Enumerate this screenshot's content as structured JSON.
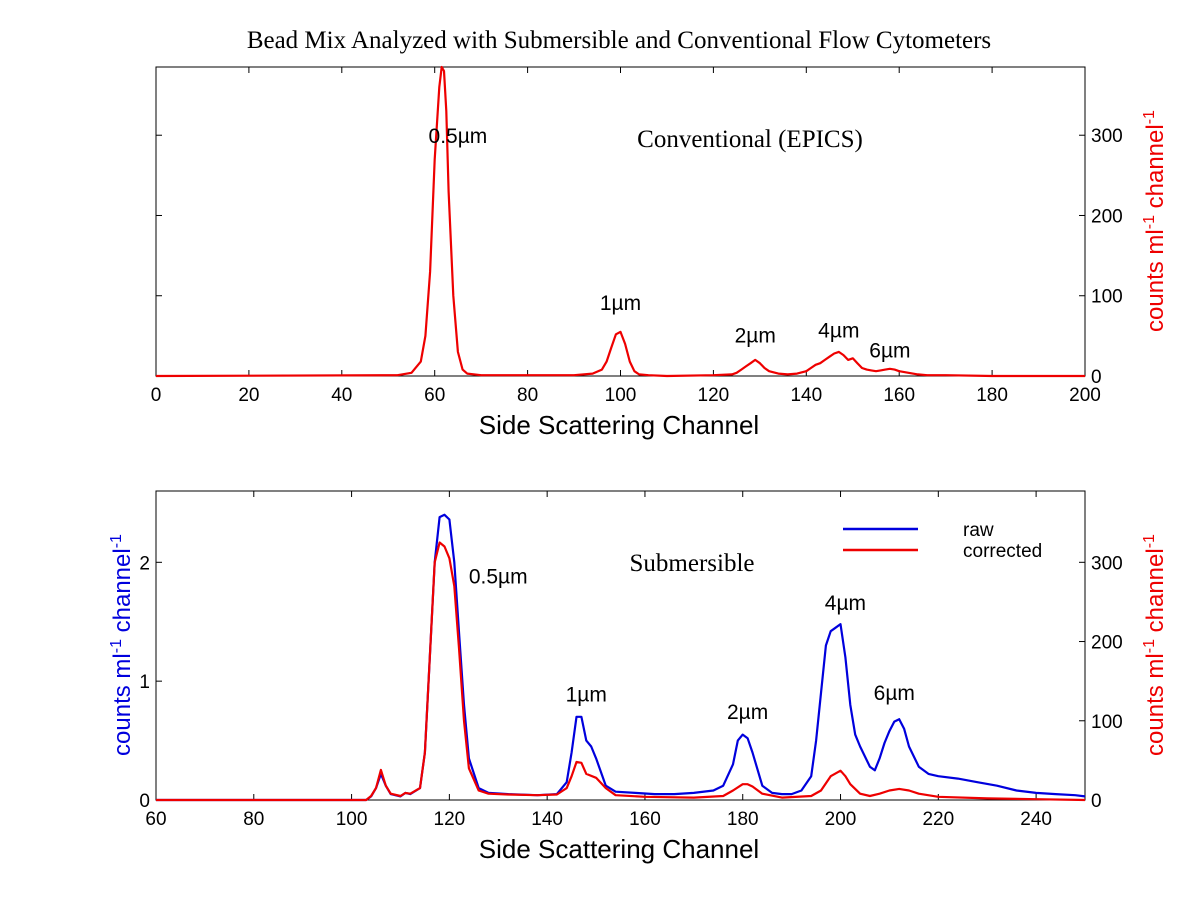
{
  "figure_title": "Bead Mix Analyzed with Submersible and Conventional Flow Cytometers",
  "chart_data": [
    {
      "type": "line",
      "panel": "top",
      "title": "Conventional (EPICS)",
      "xlabel": "Side Scattering Channel",
      "ylabel_right": "counts ml",
      "ylabel_right_sup1": "-1",
      "ylabel_right_mid": " channel",
      "ylabel_right_sup2": "-1",
      "xlim": [
        0,
        200
      ],
      "ylim_left": [
        0,
        385
      ],
      "ylim_right": [
        0,
        385
      ],
      "x_ticks": [
        0,
        20,
        40,
        60,
        80,
        100,
        120,
        140,
        160,
        180,
        200
      ],
      "y_right_ticks": [
        0,
        100,
        200,
        300
      ],
      "left_ticks_unlabeled": [
        0,
        100,
        200,
        300
      ],
      "colors": {
        "axis": "#000000",
        "series": "#ee0000",
        "right_label": "#ee0000"
      },
      "annotations": [
        {
          "text": "0.5µm",
          "x": 65,
          "y": 290
        },
        {
          "text": "1µm",
          "x": 100,
          "y": 82
        },
        {
          "text": "2µm",
          "x": 129,
          "y": 42
        },
        {
          "text": "4µm",
          "x": 147,
          "y": 48
        },
        {
          "text": "6µm",
          "x": 158,
          "y": 23
        }
      ],
      "series": [
        {
          "color": "#ee0000",
          "x": [
            0,
            52,
            55,
            57,
            58,
            59,
            60,
            61,
            61.5,
            62,
            62.5,
            63,
            64,
            65,
            66,
            67,
            70,
            90,
            94,
            96,
            97,
            98,
            99,
            100,
            101,
            102,
            103,
            104,
            106,
            110,
            120,
            124,
            125,
            126,
            127,
            128,
            129,
            130,
            131,
            132,
            134,
            136,
            138,
            140,
            141,
            142,
            143,
            144,
            145,
            146,
            147,
            148,
            149,
            150,
            151,
            152,
            153,
            154,
            155,
            156,
            157,
            158,
            159,
            160,
            162,
            164,
            166,
            170,
            180,
            200
          ],
          "y": [
            0,
            1,
            4,
            18,
            50,
            130,
            270,
            360,
            385,
            380,
            330,
            230,
            100,
            30,
            8,
            3,
            1,
            1,
            3,
            8,
            18,
            35,
            52,
            55,
            40,
            18,
            6,
            2,
            1,
            0,
            1,
            2,
            4,
            8,
            12,
            16,
            20,
            16,
            10,
            6,
            3,
            2,
            3,
            6,
            10,
            14,
            16,
            20,
            24,
            28,
            30,
            26,
            20,
            22,
            16,
            10,
            8,
            7,
            6,
            7,
            8,
            9,
            8,
            6,
            4,
            2,
            1,
            1,
            0,
            0
          ]
        }
      ]
    },
    {
      "type": "line",
      "panel": "bottom",
      "title": "Submersible",
      "xlabel": "Side Scattering Channel",
      "ylabel_left": "counts ml",
      "ylabel_left_sup1": "-1",
      "ylabel_left_mid": " channel",
      "ylabel_left_sup2": "-1",
      "ylabel_right": "counts ml",
      "ylabel_right_sup1": "-1",
      "ylabel_right_mid": " channel",
      "ylabel_right_sup2": "-1",
      "xlim": [
        60,
        250
      ],
      "ylim_left": [
        0,
        2.6
      ],
      "ylim_right": [
        0,
        390
      ],
      "x_ticks": [
        60,
        80,
        100,
        120,
        140,
        160,
        180,
        200,
        220,
        240
      ],
      "y_left_ticks": [
        0,
        1,
        2
      ],
      "y_right_ticks": [
        0,
        100,
        200,
        300
      ],
      "colors": {
        "axis": "#000000",
        "raw": "#0000dd",
        "corrected": "#ee0000"
      },
      "legend": {
        "position": "top-right",
        "entries": [
          "raw",
          "corrected"
        ]
      },
      "annotations": [
        {
          "text": "0.5µm",
          "x": 130,
          "y": 1.82
        },
        {
          "text": "1µm",
          "x": 148,
          "y": 0.83
        },
        {
          "text": "2µm",
          "x": 181,
          "y": 0.68
        },
        {
          "text": "4µm",
          "x": 201,
          "y": 1.6
        },
        {
          "text": "6µm",
          "x": 211,
          "y": 0.84
        }
      ],
      "series": [
        {
          "name": "raw",
          "axis": "left",
          "color": "#0000dd",
          "x": [
            60,
            103,
            104,
            105,
            106,
            107,
            108,
            110,
            111,
            112,
            114,
            115,
            116,
            117,
            118,
            119,
            120,
            121,
            122,
            123,
            124,
            126,
            128,
            132,
            138,
            142,
            144,
            145,
            146,
            147,
            148,
            149,
            150,
            152,
            154,
            158,
            162,
            166,
            170,
            174,
            176,
            178,
            179,
            180,
            181,
            182,
            184,
            186,
            188,
            190,
            192,
            194,
            195,
            196,
            197,
            198,
            199,
            200,
            201,
            202,
            203,
            204,
            206,
            207,
            208,
            209,
            210,
            211,
            212,
            213,
            214,
            216,
            218,
            220,
            224,
            228,
            232,
            236,
            240,
            244,
            248,
            250
          ],
          "y": [
            0,
            0,
            0.03,
            0.1,
            0.22,
            0.12,
            0.05,
            0.03,
            0.06,
            0.05,
            0.1,
            0.4,
            1.2,
            2.0,
            2.38,
            2.4,
            2.36,
            2.0,
            1.4,
            0.8,
            0.35,
            0.1,
            0.06,
            0.05,
            0.04,
            0.05,
            0.15,
            0.4,
            0.7,
            0.7,
            0.5,
            0.45,
            0.35,
            0.12,
            0.07,
            0.06,
            0.05,
            0.05,
            0.06,
            0.08,
            0.12,
            0.3,
            0.5,
            0.55,
            0.52,
            0.4,
            0.12,
            0.06,
            0.05,
            0.05,
            0.08,
            0.2,
            0.5,
            0.9,
            1.3,
            1.42,
            1.45,
            1.48,
            1.2,
            0.8,
            0.55,
            0.45,
            0.28,
            0.25,
            0.35,
            0.48,
            0.58,
            0.66,
            0.68,
            0.6,
            0.45,
            0.28,
            0.22,
            0.2,
            0.18,
            0.15,
            0.12,
            0.08,
            0.06,
            0.05,
            0.04,
            0.03
          ]
        },
        {
          "name": "corrected",
          "axis": "right",
          "color": "#ee0000",
          "x": [
            60,
            103,
            104,
            105,
            106,
            107,
            108,
            110,
            111,
            112,
            114,
            115,
            116,
            117,
            118,
            119,
            120,
            121,
            122,
            123,
            124,
            126,
            128,
            132,
            138,
            142,
            144,
            145,
            146,
            147,
            148,
            150,
            152,
            154,
            160,
            170,
            176,
            178,
            180,
            181,
            182,
            184,
            188,
            194,
            196,
            198,
            200,
            201,
            202,
            204,
            206,
            208,
            210,
            212,
            214,
            216,
            220,
            230,
            240,
            250
          ],
          "y": [
            0,
            0,
            5,
            15,
            38,
            18,
            8,
            5,
            9,
            8,
            15,
            60,
            180,
            300,
            325,
            320,
            305,
            270,
            190,
            100,
            40,
            12,
            8,
            7,
            6,
            7,
            15,
            30,
            48,
            47,
            33,
            28,
            15,
            6,
            4,
            3,
            5,
            12,
            20,
            20,
            17,
            8,
            3,
            5,
            12,
            30,
            37,
            30,
            20,
            8,
            5,
            8,
            12,
            14,
            12,
            8,
            4,
            2,
            1,
            0
          ]
        }
      ]
    }
  ]
}
